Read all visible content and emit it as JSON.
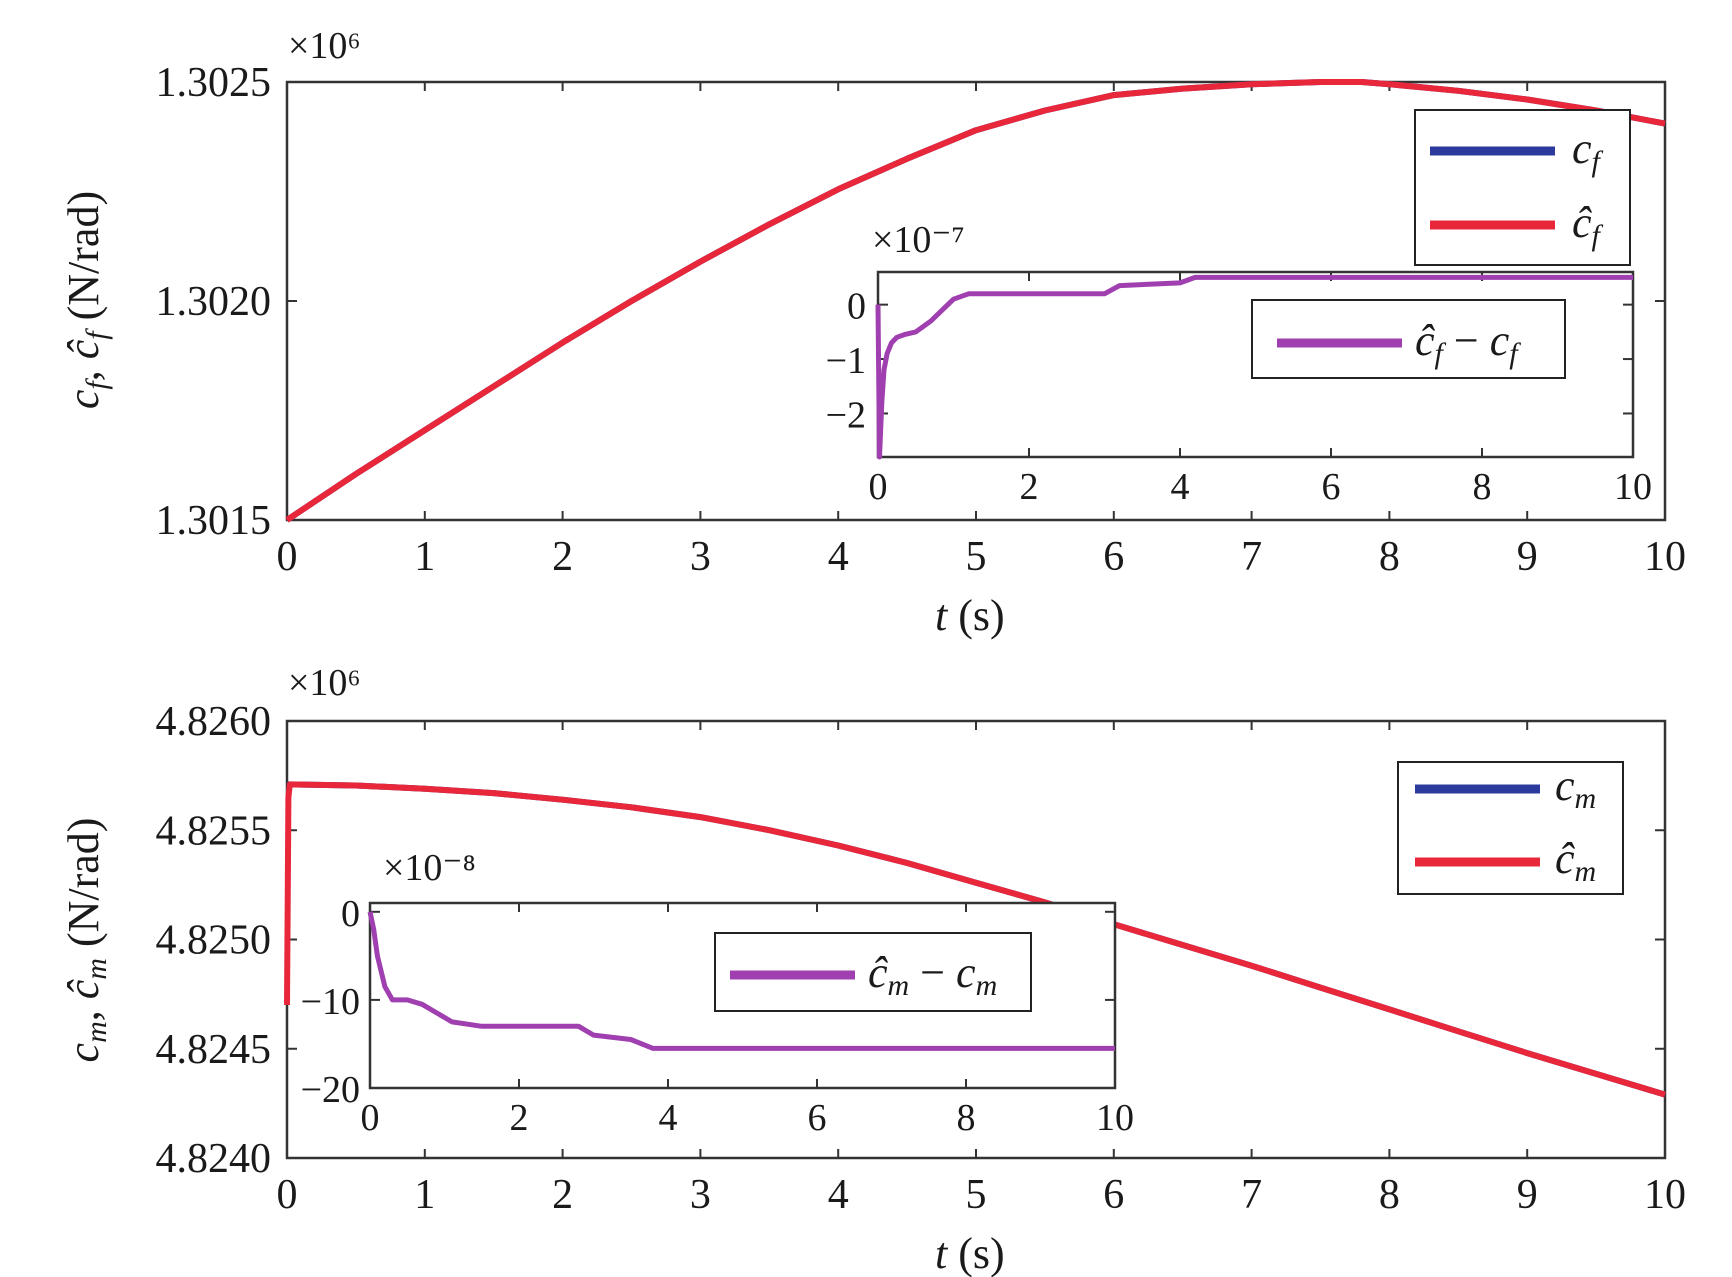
{
  "chart_data": [
    {
      "type": "line",
      "xlabel": "t (s)",
      "ylabel": "c_f, ĉ_f (N/rad)",
      "exponent_label": "×10⁶",
      "xlim": [
        0,
        10
      ],
      "ylim": [
        1.3015,
        1.3025
      ],
      "xticks": [
        "0",
        "1",
        "2",
        "3",
        "4",
        "5",
        "6",
        "7",
        "8",
        "9",
        "10"
      ],
      "yticks": [
        "1.3015",
        "1.3020",
        "1.3025"
      ],
      "legend": {
        "placement": "top-right",
        "entries": [
          "c_f",
          "ĉ_f"
        ]
      },
      "grid": false,
      "series": [
        {
          "name": "c_f",
          "color": "#2b3a9c",
          "x": [
            0,
            0.5,
            1,
            1.5,
            2,
            2.5,
            3,
            3.5,
            4,
            4.5,
            5,
            5.5,
            6,
            6.5,
            7,
            7.5,
            7.8,
            8,
            8.5,
            9,
            9.5,
            10
          ],
          "y": [
            1.3015,
            1.301605,
            1.301705,
            1.301805,
            1.301905,
            1.302,
            1.30209,
            1.302175,
            1.302255,
            1.302325,
            1.30239,
            1.302435,
            1.30247,
            1.302485,
            1.302495,
            1.3025,
            1.3025,
            1.302495,
            1.30248,
            1.30246,
            1.302435,
            1.302405
          ]
        },
        {
          "name": "ĉ_f",
          "color": "#e8283a",
          "x": [
            0,
            0.5,
            1,
            1.5,
            2,
            2.5,
            3,
            3.5,
            4,
            4.5,
            5,
            5.5,
            6,
            6.5,
            7,
            7.5,
            7.8,
            8,
            8.5,
            9,
            9.5,
            10
          ],
          "y": [
            1.3015,
            1.301605,
            1.301705,
            1.301805,
            1.301905,
            1.302,
            1.30209,
            1.302175,
            1.302255,
            1.302325,
            1.30239,
            1.302435,
            1.30247,
            1.302485,
            1.302495,
            1.3025,
            1.3025,
            1.302495,
            1.30248,
            1.30246,
            1.302435,
            1.302405
          ]
        }
      ],
      "inset": {
        "exponent_label": "×10⁻⁷",
        "xlim": [
          0,
          10
        ],
        "ylim": [
          -2.8,
          0.6
        ],
        "xticks": [
          "0",
          "2",
          "4",
          "6",
          "8",
          "10"
        ],
        "yticks": [
          "0",
          "−1",
          "−2"
        ],
        "legend": {
          "entries": [
            "ĉ_f − c_f"
          ]
        },
        "series": [
          {
            "name": "ĉ_f − c_f",
            "color": "#a040b0",
            "x": [
              0,
              0.02,
              0.05,
              0.08,
              0.12,
              0.18,
              0.25,
              0.35,
              0.5,
              0.7,
              0.85,
              1.0,
              1.2,
              2.0,
              3.0,
              3.2,
              4.0,
              4.2,
              4.5,
              6.0,
              8.0,
              10.0
            ],
            "y": [
              0,
              -2.8,
              -1.8,
              -1.2,
              -0.9,
              -0.7,
              -0.6,
              -0.55,
              -0.5,
              -0.3,
              -0.1,
              0.1,
              0.2,
              0.2,
              0.2,
              0.35,
              0.4,
              0.5,
              0.5,
              0.5,
              0.5,
              0.5
            ]
          }
        ]
      }
    },
    {
      "type": "line",
      "xlabel": "t (s)",
      "ylabel": "c_m, ĉ_m (N/rad)",
      "exponent_label": "×10⁶",
      "xlim": [
        0,
        10
      ],
      "ylim": [
        4.824,
        4.826
      ],
      "xticks": [
        "0",
        "1",
        "2",
        "3",
        "4",
        "5",
        "6",
        "7",
        "8",
        "9",
        "10"
      ],
      "yticks": [
        "4.8240",
        "4.8245",
        "4.8250",
        "4.8255",
        "4.8260"
      ],
      "legend": {
        "placement": "top-right",
        "entries": [
          "c_m",
          "ĉ_m"
        ]
      },
      "grid": false,
      "series": [
        {
          "name": "c_m",
          "color": "#2b3a9c",
          "x": [
            0,
            0.5,
            1,
            1.5,
            2,
            2.5,
            3,
            3.5,
            4,
            4.5,
            5,
            5.5,
            6,
            6.5,
            7,
            7.5,
            8,
            8.5,
            9,
            9.5,
            10
          ],
          "y": [
            4.82571,
            4.825705,
            4.82569,
            4.82567,
            4.82564,
            4.825605,
            4.82556,
            4.8255,
            4.82543,
            4.82535,
            4.82526,
            4.82517,
            4.82507,
            4.824975,
            4.82488,
            4.82478,
            4.82468,
            4.82458,
            4.82448,
            4.824385,
            4.82429
          ]
        },
        {
          "name": "ĉ_m",
          "color": "#e8283a",
          "x": [
            0,
            0.01,
            0.02,
            0.5,
            1,
            1.5,
            2,
            2.5,
            3,
            3.5,
            4,
            4.5,
            5,
            5.5,
            6,
            6.5,
            7,
            7.5,
            8,
            8.5,
            9,
            9.5,
            10
          ],
          "y": [
            4.8247,
            4.82565,
            4.82571,
            4.825705,
            4.82569,
            4.82567,
            4.82564,
            4.825605,
            4.82556,
            4.8255,
            4.82543,
            4.82535,
            4.82526,
            4.82517,
            4.82507,
            4.824975,
            4.82488,
            4.82478,
            4.82468,
            4.82458,
            4.82448,
            4.824385,
            4.82429
          ]
        }
      ],
      "inset": {
        "exponent_label": "×10⁻⁸",
        "xlim": [
          0,
          10
        ],
        "ylim": [
          -20,
          1
        ],
        "xticks": [
          "0",
          "2",
          "4",
          "6",
          "8",
          "10"
        ],
        "yticks": [
          "0",
          "−10",
          "−20"
        ],
        "legend": {
          "entries": [
            "ĉ_m − c_m"
          ]
        },
        "series": [
          {
            "name": "ĉ_m − c_m",
            "color": "#a040b0",
            "x": [
              0,
              0.05,
              0.1,
              0.2,
              0.3,
              0.5,
              0.7,
              0.9,
              1.1,
              1.5,
              2.0,
              2.8,
              3.0,
              3.5,
              3.8,
              4.0,
              6.0,
              8.0,
              10.0
            ],
            "y": [
              0,
              -2,
              -5,
              -8.5,
              -10,
              -10,
              -10.5,
              -11.5,
              -12.5,
              -13,
              -13,
              -13,
              -14,
              -14.5,
              -15.5,
              -15.5,
              -15.5,
              -15.5,
              -15.5
            ]
          }
        ]
      }
    }
  ]
}
